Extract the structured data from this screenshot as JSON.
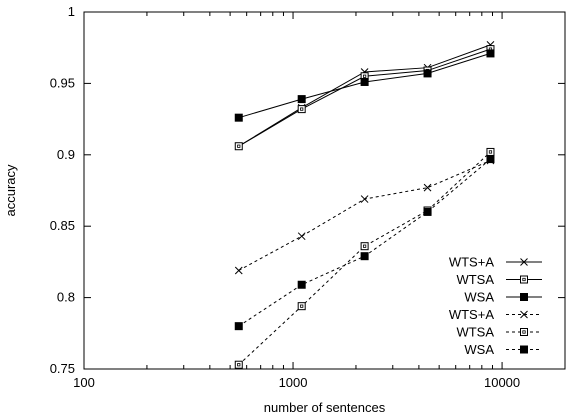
{
  "chart_data": {
    "type": "line",
    "title": "",
    "xlabel": "number of sentences",
    "ylabel": "accuracy",
    "xscale": "log",
    "xlim": [
      100,
      20000
    ],
    "ylim": [
      0.75,
      1.0
    ],
    "xticks": [
      100,
      1000,
      10000
    ],
    "xtick_labels": [
      "100",
      "1000",
      "10000"
    ],
    "yticks": [
      0.75,
      0.8,
      0.85,
      0.9,
      0.95,
      1.0
    ],
    "ytick_labels": [
      "0.75",
      "0.8",
      "0.85",
      "0.9",
      "0.95",
      "1"
    ],
    "grid": false,
    "legend_position": "bottom-right",
    "series": [
      {
        "name": "WTS+A",
        "line": "solid",
        "marker": "x",
        "x": [
          550,
          1100,
          2200,
          4400,
          8800
        ],
        "y": [
          0.906,
          0.933,
          0.958,
          0.961,
          0.977
        ]
      },
      {
        "name": "WTSA",
        "line": "solid",
        "marker": "open-square",
        "x": [
          550,
          1100,
          2200,
          4400,
          8800
        ],
        "y": [
          0.906,
          0.932,
          0.955,
          0.959,
          0.974
        ]
      },
      {
        "name": "WSA",
        "line": "solid",
        "marker": "filled-square",
        "x": [
          550,
          1100,
          2200,
          4400,
          8800
        ],
        "y": [
          0.926,
          0.939,
          0.951,
          0.957,
          0.971
        ]
      },
      {
        "name": "WTS+A",
        "line": "dashed",
        "marker": "x",
        "x": [
          550,
          1100,
          2200,
          4400,
          8800
        ],
        "y": [
          0.819,
          0.843,
          0.869,
          0.877,
          0.896
        ]
      },
      {
        "name": "WTSA",
        "line": "dashed",
        "marker": "open-square",
        "x": [
          550,
          1100,
          2200,
          4400,
          8800
        ],
        "y": [
          0.753,
          0.794,
          0.836,
          0.861,
          0.902
        ]
      },
      {
        "name": "WSA",
        "line": "dashed",
        "marker": "filled-square",
        "x": [
          550,
          1100,
          2200,
          4400,
          8800
        ],
        "y": [
          0.78,
          0.809,
          0.829,
          0.86,
          0.897
        ]
      }
    ]
  }
}
